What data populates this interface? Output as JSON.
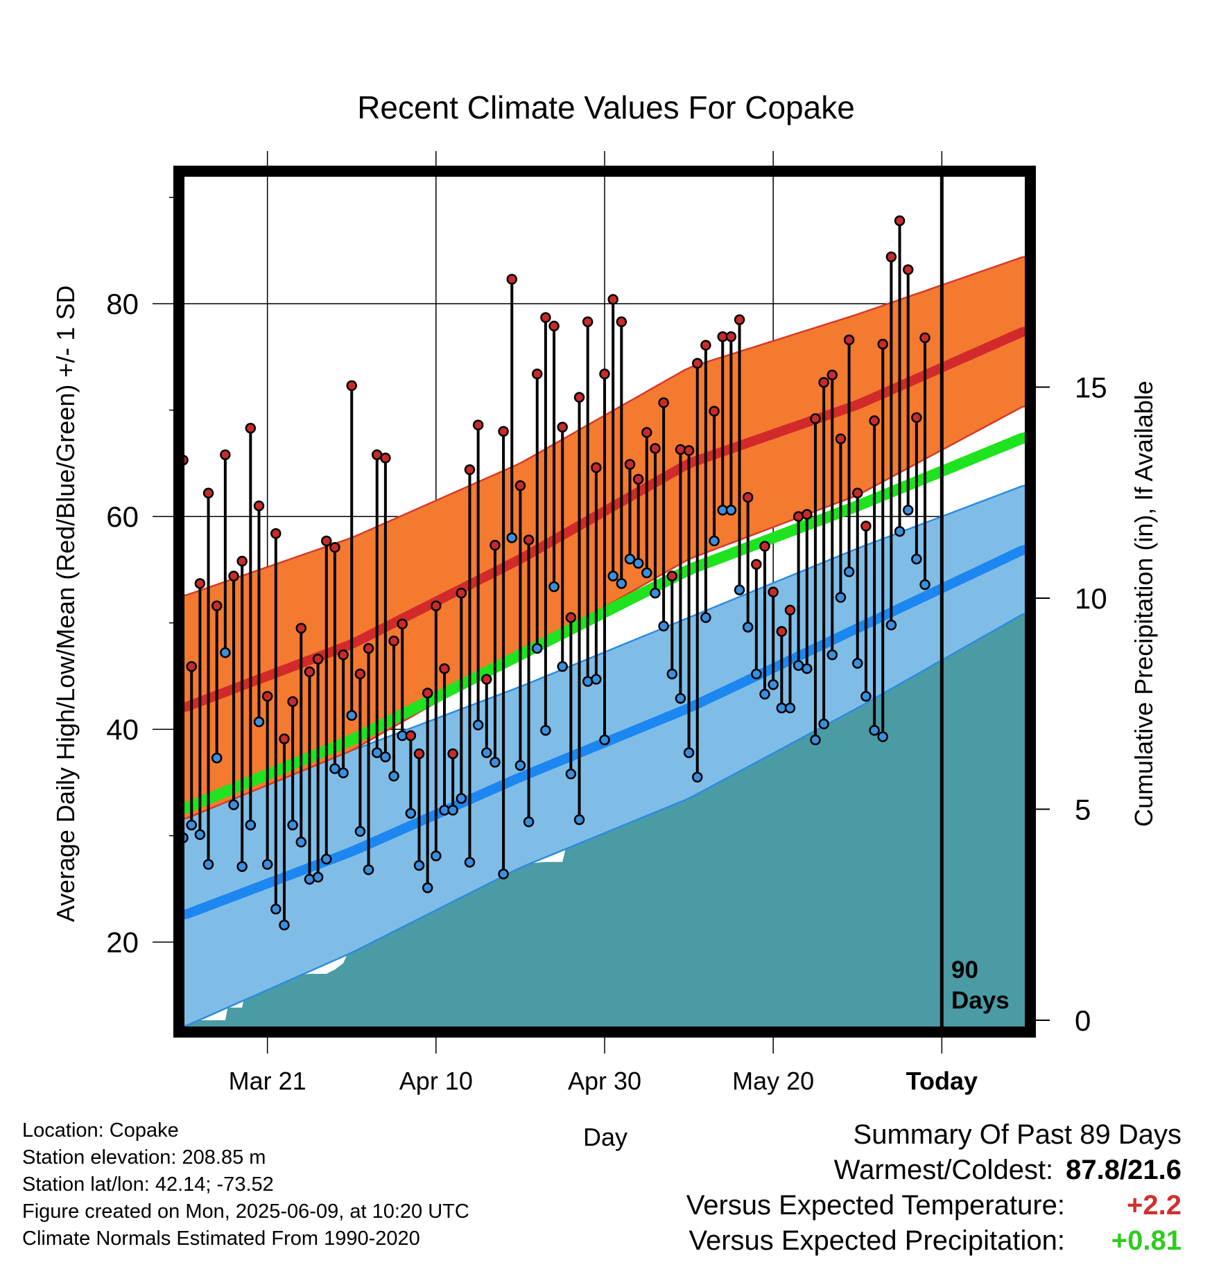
{
  "title": "Recent Climate Values For Copake",
  "chart_data": {
    "type": "line",
    "title": "Recent Climate Values For Copake",
    "xlabel": "Day",
    "ylabel_left": "Average Daily High/Low/Mean (Red/Blue/Green) +/- 1 SD",
    "ylabel_right": "Cumulative Precipitation (in), If Available",
    "x_tick_labels": [
      "Mar 21",
      "Apr 10",
      "Apr 30",
      "May 20",
      "Today"
    ],
    "x_tick_days": [
      10,
      30,
      50,
      70,
      90
    ],
    "x_range_days": [
      -0.5,
      100.5
    ],
    "today_label": [
      "90",
      "Days"
    ],
    "ylim_left": [
      12,
      92
    ],
    "y_ticks_left": [
      20,
      40,
      60,
      80
    ],
    "ylim_right": [
      0,
      20
    ],
    "y_ticks_right": [
      0,
      5,
      10,
      15
    ],
    "grid": true,
    "normals": {
      "day": [
        0,
        20,
        40,
        60,
        80,
        100
      ],
      "high_mean": [
        42,
        48,
        56,
        65,
        70.5,
        77.5
      ],
      "high_sd": [
        10.5,
        10,
        9,
        9,
        8.5,
        7
      ],
      "mean_mean": [
        32.5,
        39,
        47,
        55,
        61,
        67.5
      ],
      "low_mean": [
        22.5,
        28.5,
        35.5,
        42,
        49.5,
        57
      ],
      "low_sd": [
        10.5,
        9.5,
        8.5,
        8.5,
        7.5,
        6
      ]
    },
    "series": [
      {
        "name": "High",
        "values": [
          65.3,
          45.9,
          53.7,
          62.2,
          51.6,
          65.8,
          54.4,
          55.8,
          68.3,
          61.0,
          43.1,
          58.4,
          39.1,
          42.6,
          49.5,
          45.4,
          46.6,
          57.7,
          57.1,
          47.0,
          72.3,
          45.2,
          47.6,
          65.8,
          65.5,
          48.3,
          49.9,
          39.4,
          37.7,
          43.4,
          51.6,
          45.7,
          37.7,
          52.8,
          64.4,
          68.6,
          44.7,
          57.3,
          68.0,
          82.3,
          62.9,
          57.8,
          73.4,
          78.7,
          77.9,
          68.4,
          50.5,
          71.2,
          78.3,
          64.6,
          73.4,
          80.4,
          78.3,
          64.9,
          63.5,
          67.9,
          66.4,
          70.7,
          54.4,
          66.3,
          66.2,
          74.4,
          76.1,
          69.9,
          76.9,
          76.9,
          78.5,
          61.8,
          55.5,
          57.2,
          52.9,
          49.2,
          51.2,
          60.0,
          60.2,
          69.2,
          72.6,
          73.3,
          67.3,
          76.6,
          62.2,
          59.1,
          69.0,
          76.2,
          84.4,
          87.8,
          83.2,
          69.3,
          76.8
        ],
        "color": "#c92a2a"
      },
      {
        "name": "Low",
        "values": [
          29.8,
          31.0,
          30.1,
          27.3,
          37.3,
          47.2,
          32.9,
          27.1,
          31.0,
          40.7,
          27.3,
          23.1,
          21.6,
          31.0,
          29.4,
          25.9,
          26.1,
          27.8,
          36.3,
          35.9,
          41.3,
          30.4,
          26.8,
          37.8,
          37.4,
          35.6,
          39.4,
          32.1,
          27.2,
          25.1,
          28.1,
          32.4,
          32.4,
          33.5,
          27.5,
          40.4,
          37.8,
          36.9,
          26.4,
          58.0,
          36.6,
          31.3,
          47.6,
          39.9,
          53.4,
          45.9,
          35.8,
          31.5,
          44.5,
          44.7,
          39.0,
          54.4,
          53.7,
          56.0,
          55.6,
          54.7,
          52.8,
          49.7,
          45.2,
          42.9,
          37.8,
          35.5,
          50.5,
          57.7,
          60.6,
          60.6,
          53.1,
          49.6,
          45.2,
          43.3,
          44.2,
          42.0,
          42.0,
          46.0,
          45.7,
          39.0,
          40.5,
          47.0,
          52.4,
          54.8,
          46.2,
          43.1,
          39.9,
          39.3,
          49.8,
          58.6,
          60.6,
          56.0,
          53.6
        ],
        "color": "#3a8fde"
      }
    ],
    "precip_cumulative": {
      "day": [
        0,
        5,
        5.3,
        7,
        7.3,
        9,
        10,
        12,
        13,
        15,
        17,
        18,
        19,
        20,
        21,
        22,
        24,
        25,
        26,
        28,
        30,
        31,
        32,
        33,
        34,
        36,
        38,
        40,
        43,
        45,
        46,
        48,
        50,
        52,
        54,
        56,
        58,
        59,
        60,
        64,
        68,
        70,
        72,
        74,
        80,
        81,
        84,
        86,
        87,
        88,
        89,
        100.5
      ],
      "values": [
        0,
        0,
        0.3,
        0.3,
        0.6,
        0.9,
        0.95,
        1.0,
        1.05,
        1.1,
        1.1,
        1.2,
        1.35,
        1.8,
        1.9,
        2.1,
        2.15,
        2.6,
        2.7,
        2.9,
        3.0,
        3.1,
        3.2,
        3.5,
        3.55,
        3.6,
        3.65,
        3.7,
        3.75,
        3.75,
        4.6,
        4.65,
        4.65,
        4.7,
        5.2,
        6.5,
        6.8,
        6.8,
        8.5,
        8.5,
        8.5,
        8.6,
        8.6,
        9.4,
        9.5,
        11.0,
        11.0,
        11.05,
        11.3,
        11.8,
        11.8,
        11.8
      ],
      "color": "#4a9ba4"
    }
  },
  "info": {
    "location": "Location: Copake",
    "elevation": "Station elevation: 208.85 m",
    "latlon": "Station lat/lon: 42.14; -73.52",
    "created": "Figure created on Mon, 2025-06-09, at 10:20 UTC",
    "normals": "Climate Normals Estimated From 1990-2020"
  },
  "summary": {
    "heading": "Summary Of Past 89 Days",
    "warm_cold_label": "Warmest/Coldest:",
    "warm_cold_value": "87.8/21.6",
    "temp_label": "Versus Expected Temperature:",
    "temp_value": "+2.2",
    "temp_color": "#d32f2f",
    "precip_label": "Versus Expected Precipitation:",
    "precip_value": "+0.81",
    "precip_color": "#2ecc1f"
  }
}
